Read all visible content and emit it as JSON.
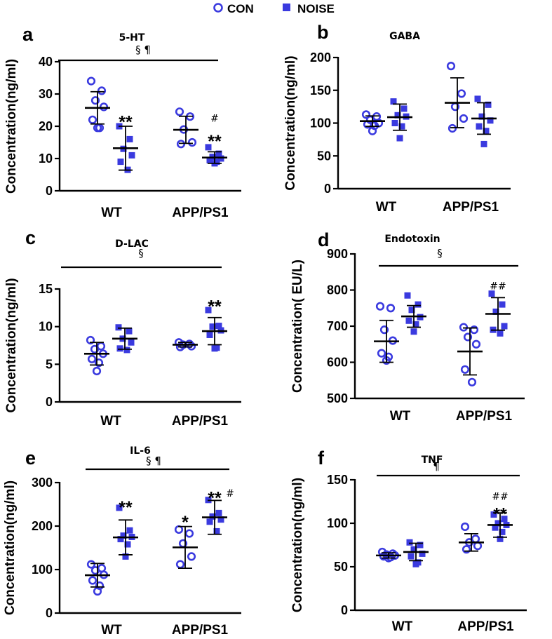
{
  "legend": {
    "con_label": "CON",
    "noise_label": "NOISE",
    "con_color": "#3a3adf",
    "noise_color": "#3a3adf"
  },
  "chart_data": [
    {
      "panel": "a",
      "title": "5-HT",
      "type": "scatter",
      "ylabel": "Concentration(ng/ml)",
      "ylim": [
        0,
        40
      ],
      "yticks": [
        0,
        10,
        20,
        30,
        40
      ],
      "categories": [
        "WT",
        "APP/PS1"
      ],
      "bar_label": "§ ¶",
      "series": [
        {
          "name": "CON",
          "group": "WT",
          "points": [
            34,
            31,
            28,
            26,
            22,
            19.5,
            19.5
          ],
          "mean": 25.7,
          "sd": 5
        },
        {
          "name": "NOISE",
          "group": "WT",
          "points": [
            20,
            16,
            13,
            11,
            9,
            6.5
          ],
          "mean": 13.2,
          "sd": 6.8
        },
        {
          "name": "CON",
          "group": "APP/PS1",
          "points": [
            24.5,
            23,
            19,
            15,
            14.5
          ],
          "mean": 18.9,
          "sd": 4.2
        },
        {
          "name": "NOISE",
          "group": "APP/PS1",
          "points": [
            13.5,
            11.5,
            10.5,
            10,
            9.5,
            9,
            8.5
          ],
          "mean": 10.3,
          "sd": 1.8
        }
      ],
      "annotations": [
        {
          "series": 1,
          "text": "**",
          "value": 22.5
        },
        {
          "series": 3,
          "text": "**",
          "value": 16.5
        },
        {
          "series": 3,
          "text": "#",
          "value": 22.5
        }
      ]
    },
    {
      "panel": "b",
      "title": "GABA",
      "type": "scatter",
      "ylabel": "Concentration(ng/ml)",
      "ylim": [
        0,
        200
      ],
      "yticks": [
        0,
        50,
        100,
        150,
        200
      ],
      "categories": [
        "WT",
        "APP/PS1"
      ],
      "bar_label": "",
      "series": [
        {
          "name": "CON",
          "group": "WT",
          "points": [
            113,
            110,
            105,
            100,
            98,
            96,
            88
          ],
          "mean": 103,
          "sd": 8
        },
        {
          "name": "NOISE",
          "group": "WT",
          "points": [
            133,
            122,
            112,
            110,
            100,
            95,
            77
          ],
          "mean": 109,
          "sd": 20
        },
        {
          "name": "CON",
          "group": "APP/PS1",
          "points": [
            187,
            145,
            125,
            107,
            92
          ],
          "mean": 131,
          "sd": 38
        },
        {
          "name": "NOISE",
          "group": "APP/PS1",
          "points": [
            137,
            128,
            110,
            104,
            95,
            88,
            68
          ],
          "mean": 107,
          "sd": 24
        }
      ],
      "annotations": []
    },
    {
      "panel": "c",
      "title": "D-LAC",
      "type": "scatter",
      "ylabel": "Concentration(ng/ml)",
      "ylim": [
        0,
        15
      ],
      "yticks": [
        0,
        5,
        10,
        15
      ],
      "categories": [
        "WT",
        "APP/PS1"
      ],
      "bar_label": "§",
      "series": [
        {
          "name": "CON",
          "group": "WT",
          "points": [
            8.2,
            7.4,
            7.0,
            6.4,
            5.7,
            5.2,
            4.1
          ],
          "mean": 6.4,
          "sd": 1.5
        },
        {
          "name": "NOISE",
          "group": "WT",
          "points": [
            9.9,
            9.4,
            8.4,
            7.9,
            7.1,
            6.9
          ],
          "mean": 8.4,
          "sd": 1.4
        },
        {
          "name": "CON",
          "group": "APP/PS1",
          "points": [
            7.9,
            7.7,
            7.6,
            7.4,
            7.3
          ],
          "mean": 7.6,
          "sd": 0.3
        },
        {
          "name": "NOISE",
          "group": "APP/PS1",
          "points": [
            12.2,
            10.1,
            10.0,
            9.5,
            8.9,
            7.2,
            7.1
          ],
          "mean": 9.4,
          "sd": 1.8
        }
      ],
      "annotations": [
        {
          "series": 3,
          "text": "**",
          "value": 13.2
        }
      ]
    },
    {
      "panel": "d",
      "title": "Endotoxin",
      "type": "scatter",
      "ylabel": "Concentration( EU/L)",
      "ylim": [
        500,
        900
      ],
      "yticks": [
        500,
        600,
        700,
        800,
        900
      ],
      "categories": [
        "WT",
        "APP/PS1"
      ],
      "bar_label": "§",
      "series": [
        {
          "name": "CON",
          "group": "WT",
          "points": [
            755,
            750,
            690,
            660,
            625,
            615,
            605
          ],
          "mean": 658,
          "sd": 58
        },
        {
          "name": "NOISE",
          "group": "WT",
          "points": [
            785,
            760,
            745,
            725,
            715,
            705,
            685
          ],
          "mean": 727,
          "sd": 30
        },
        {
          "name": "CON",
          "group": "APP/PS1",
          "points": [
            697,
            690,
            670,
            650,
            580,
            545
          ],
          "mean": 630,
          "sd": 65
        },
        {
          "name": "NOISE",
          "group": "APP/PS1",
          "points": [
            790,
            760,
            740,
            700,
            690,
            680
          ],
          "mean": 734,
          "sd": 45
        }
      ],
      "annotations": [
        {
          "series": 3,
          "text": "##",
          "value": 812
        }
      ]
    },
    {
      "panel": "e",
      "title": "IL-6",
      "type": "scatter",
      "ylabel": "Concentration(ng/ml)",
      "ylim": [
        0,
        300
      ],
      "yticks": [
        0,
        100,
        200,
        300
      ],
      "categories": [
        "WT",
        "APP/PS1"
      ],
      "bar_label": "§ ¶",
      "series": [
        {
          "name": "CON",
          "group": "WT",
          "points": [
            112,
            103,
            98,
            88,
            75,
            63,
            50
          ],
          "mean": 87,
          "sd": 27
        },
        {
          "name": "NOISE",
          "group": "WT",
          "points": [
            242,
            190,
            178,
            175,
            170,
            158,
            130
          ],
          "mean": 174,
          "sd": 40
        },
        {
          "name": "CON",
          "group": "APP/PS1",
          "points": [
            192,
            183,
            160,
            130,
            112
          ],
          "mean": 151,
          "sd": 48
        },
        {
          "name": "NOISE",
          "group": "APP/PS1",
          "points": [
            260,
            230,
            222,
            215,
            210,
            188
          ],
          "mean": 220,
          "sd": 39
        }
      ],
      "annotations": [
        {
          "series": 1,
          "text": "**",
          "value": 252
        },
        {
          "series": 2,
          "text": "*",
          "value": 218
        },
        {
          "series": 3,
          "text": "**",
          "value": 273
        },
        {
          "series": 3,
          "text": "#",
          "value": 282
        }
      ]
    },
    {
      "panel": "f",
      "title": "TNF",
      "type": "scatter",
      "ylabel": "Concentration(ng/ml)",
      "ylim": [
        0,
        150
      ],
      "yticks": [
        0,
        50,
        100,
        150
      ],
      "categories": [
        "WT",
        "APP/PS1"
      ],
      "bar_label": "¶",
      "series": [
        {
          "name": "CON",
          "group": "WT",
          "points": [
            67,
            65,
            64,
            63,
            62,
            61,
            60
          ],
          "mean": 63,
          "sd": 3
        },
        {
          "name": "NOISE",
          "group": "WT",
          "points": [
            78,
            75,
            70,
            65,
            62,
            55,
            53
          ],
          "mean": 67,
          "sd": 10
        },
        {
          "name": "CON",
          "group": "APP/PS1",
          "points": [
            96,
            82,
            78,
            74,
            70
          ],
          "mean": 78,
          "sd": 10
        },
        {
          "name": "NOISE",
          "group": "APP/PS1",
          "points": [
            110,
            105,
            100,
            98,
            95,
            90,
            82
          ],
          "mean": 98,
          "sd": 14
        }
      ],
      "annotations": [
        {
          "series": 3,
          "text": "**",
          "value": 115
        },
        {
          "series": 3,
          "text": "##",
          "value": 131
        }
      ]
    }
  ]
}
